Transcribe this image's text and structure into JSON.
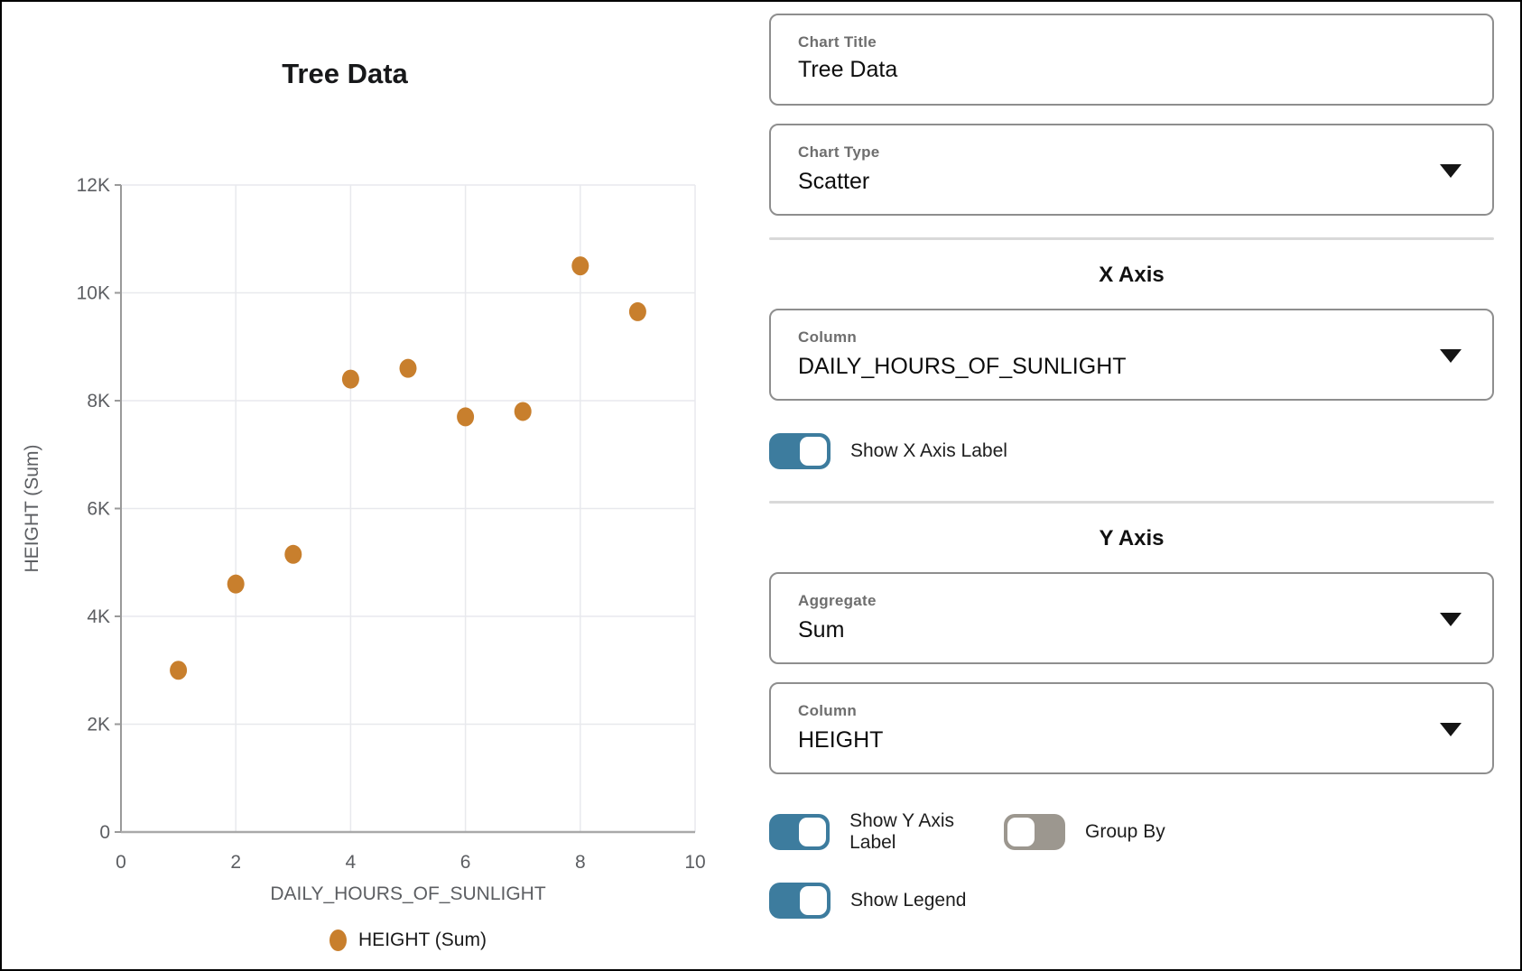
{
  "chart_data": {
    "type": "scatter",
    "title": "Tree Data",
    "xlabel": "DAILY_HOURS_OF_SUNLIGHT",
    "ylabel": "HEIGHT (Sum)",
    "series": [
      {
        "name": "HEIGHT (Sum)",
        "x": [
          1,
          2,
          3,
          4,
          5,
          6,
          7,
          8,
          9
        ],
        "y": [
          3000,
          4600,
          5150,
          8400,
          8600,
          7700,
          7800,
          10500,
          9650
        ]
      }
    ],
    "xlim": [
      0,
      10
    ],
    "ylim": [
      0,
      12000
    ],
    "xticks": [
      0,
      2,
      4,
      6,
      8,
      10
    ],
    "yticks": [
      0,
      2000,
      4000,
      6000,
      8000,
      10000,
      12000
    ],
    "ytick_labels": [
      "0",
      "2K",
      "4K",
      "6K",
      "8K",
      "10K",
      "12K"
    ],
    "grid": true,
    "point_color": "#c87f2d",
    "legend_position": "bottom",
    "legend": [
      {
        "label": "HEIGHT (Sum)",
        "color": "#c87f2d"
      }
    ]
  },
  "panel": {
    "chart_title_field": {
      "label": "Chart Title",
      "value": "Tree Data"
    },
    "chart_type_field": {
      "label": "Chart Type",
      "value": "Scatter"
    },
    "x_axis": {
      "heading": "X Axis",
      "column_field": {
        "label": "Column",
        "value": "DAILY_HOURS_OF_SUNLIGHT"
      },
      "show_label_toggle": {
        "label": "Show X Axis Label",
        "state": true
      }
    },
    "y_axis": {
      "heading": "Y Axis",
      "aggregate_field": {
        "label": "Aggregate",
        "value": "Sum"
      },
      "column_field": {
        "label": "Column",
        "value": "HEIGHT"
      },
      "show_label_toggle": {
        "label": "Show Y Axis Label",
        "state": true
      },
      "group_by_toggle": {
        "label": "Group By",
        "state": false
      },
      "show_legend_toggle": {
        "label": "Show Legend",
        "state": true
      }
    },
    "colors": {
      "toggle_on": "#3d7c9e",
      "toggle_off": "#9c978f",
      "accent_point": "#c87f2d"
    }
  }
}
